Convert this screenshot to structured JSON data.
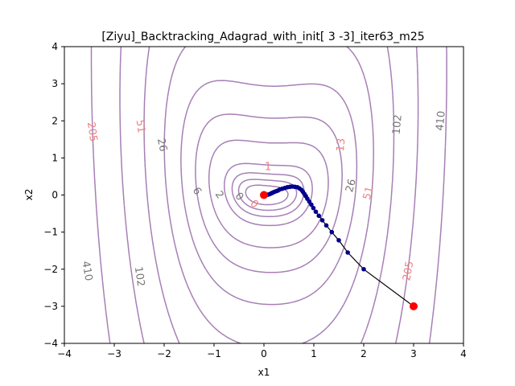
{
  "chart_data": {
    "type": "contour",
    "title": "[Ziyu]_Backtracking_Adagrad_with_init[ 3 -3]_iter63_m25",
    "xlabel": "x1",
    "ylabel": "x2",
    "xlim": [
      -4,
      4
    ],
    "ylim": [
      -4,
      4
    ],
    "xticks": [
      "−4",
      "−3",
      "−2",
      "−1",
      "0",
      "1",
      "2",
      "3",
      "4"
    ],
    "yticks": [
      "−4",
      "−3",
      "−2",
      "−1",
      "0",
      "1",
      "2",
      "3",
      "4"
    ],
    "xtick_values": [
      -4,
      -3,
      -2,
      -1,
      0,
      1,
      2,
      3,
      4
    ],
    "ytick_values": [
      -4,
      -3,
      -2,
      -1,
      0,
      1,
      2,
      3,
      4
    ],
    "grid": false,
    "colors": {
      "contour": "#a67fb5",
      "label_gray": "#777777",
      "label_red": "#f07f7f",
      "path": "#000000",
      "points": "#00008b",
      "endpoints": "#ff0000"
    },
    "contour_levels": [
      0.0,
      0.2,
      0.5,
      1,
      2,
      6,
      13,
      26,
      51,
      102,
      205,
      410
    ],
    "contour_labels": [
      {
        "text": "205",
        "x": -3.45,
        "y": 1.7,
        "color": "red",
        "angle": 82
      },
      {
        "text": "51",
        "x": -2.48,
        "y": 1.85,
        "color": "red",
        "angle": 82
      },
      {
        "text": "26",
        "x": -2.05,
        "y": 1.35,
        "color": "gray",
        "angle": 78
      },
      {
        "text": "6",
        "x": -1.35,
        "y": 0.1,
        "color": "gray",
        "angle": 60
      },
      {
        "text": "2",
        "x": -0.9,
        "y": 0.0,
        "color": "gray",
        "angle": 55
      },
      {
        "text": "0",
        "x": -0.5,
        "y": -0.05,
        "color": "gray",
        "angle": 50
      },
      {
        "text": "0",
        "x": -0.2,
        "y": -0.25,
        "color": "red",
        "angle": 45
      },
      {
        "text": "1",
        "x": 0.08,
        "y": 0.75,
        "color": "red",
        "angle": 0
      },
      {
        "text": "13",
        "x": 1.55,
        "y": 1.35,
        "color": "red",
        "angle": -85
      },
      {
        "text": "26",
        "x": 1.75,
        "y": 0.25,
        "color": "gray",
        "angle": -75
      },
      {
        "text": "51",
        "x": 2.1,
        "y": 0.05,
        "color": "red",
        "angle": -75
      },
      {
        "text": "102",
        "x": 2.68,
        "y": 1.9,
        "color": "gray",
        "angle": -85
      },
      {
        "text": "205",
        "x": 2.9,
        "y": -2.05,
        "color": "red",
        "angle": -80
      },
      {
        "text": "410",
        "x": 3.55,
        "y": 2.0,
        "color": "gray",
        "angle": -85
      },
      {
        "text": "410",
        "x": -3.55,
        "y": -2.05,
        "color": "gray",
        "angle": 80
      },
      {
        "text": "102",
        "x": -2.5,
        "y": -2.2,
        "color": "gray",
        "angle": 82
      }
    ],
    "path": [
      [
        3.0,
        -3.0
      ],
      [
        2.0,
        -2.0
      ],
      [
        1.68,
        -1.55
      ],
      [
        1.5,
        -1.22
      ],
      [
        1.36,
        -1.0
      ],
      [
        1.25,
        -0.82
      ],
      [
        1.17,
        -0.68
      ],
      [
        1.1,
        -0.56
      ],
      [
        1.04,
        -0.45
      ],
      [
        0.99,
        -0.35
      ],
      [
        0.95,
        -0.26
      ],
      [
        0.91,
        -0.18
      ],
      [
        0.87,
        -0.1
      ],
      [
        0.84,
        -0.03
      ],
      [
        0.81,
        0.03
      ],
      [
        0.78,
        0.09
      ],
      [
        0.75,
        0.14
      ],
      [
        0.71,
        0.18
      ],
      [
        0.67,
        0.21
      ],
      [
        0.62,
        0.22
      ],
      [
        0.57,
        0.23
      ],
      [
        0.52,
        0.22
      ],
      [
        0.47,
        0.21
      ],
      [
        0.42,
        0.19
      ],
      [
        0.37,
        0.17
      ],
      [
        0.32,
        0.15
      ],
      [
        0.28,
        0.12
      ],
      [
        0.24,
        0.1
      ],
      [
        0.2,
        0.08
      ],
      [
        0.17,
        0.06
      ],
      [
        0.14,
        0.04
      ],
      [
        0.11,
        0.02
      ],
      [
        0.08,
        0.01
      ]
    ],
    "start_point": [
      3.0,
      -3.0
    ],
    "end_point": [
      0.0,
      0.0
    ]
  }
}
